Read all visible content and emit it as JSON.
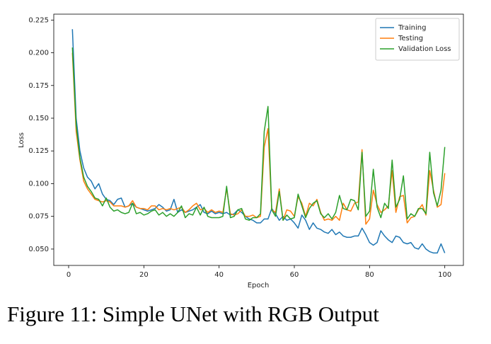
{
  "chart_data": {
    "type": "line",
    "xlabel": "Epoch",
    "ylabel": "Loss",
    "caption": "Figure 11: Simple UNet with RGB Output",
    "legend": "upper right",
    "x": [
      1,
      2,
      3,
      4,
      5,
      6,
      7,
      8,
      9,
      10,
      11,
      12,
      13,
      14,
      15,
      16,
      17,
      18,
      19,
      20,
      21,
      22,
      23,
      24,
      25,
      26,
      27,
      28,
      29,
      30,
      31,
      32,
      33,
      34,
      35,
      36,
      37,
      38,
      39,
      40,
      41,
      42,
      43,
      44,
      45,
      46,
      47,
      48,
      49,
      50,
      51,
      52,
      53,
      54,
      55,
      56,
      57,
      58,
      59,
      60,
      61,
      62,
      63,
      64,
      65,
      66,
      67,
      68,
      69,
      70,
      71,
      72,
      73,
      74,
      75,
      76,
      77,
      78,
      79,
      80,
      81,
      82,
      83,
      84,
      85,
      86,
      87,
      88,
      89,
      90,
      91,
      92,
      93,
      94,
      95,
      96,
      97,
      98,
      99,
      100
    ],
    "series": [
      {
        "name": "Training",
        "color": "#1f77b4",
        "values": [
          0.218,
          0.15,
          0.125,
          0.112,
          0.105,
          0.102,
          0.096,
          0.1,
          0.092,
          0.088,
          0.087,
          0.084,
          0.088,
          0.089,
          0.082,
          0.083,
          0.085,
          0.082,
          0.081,
          0.08,
          0.079,
          0.08,
          0.081,
          0.084,
          0.082,
          0.079,
          0.08,
          0.088,
          0.078,
          0.08,
          0.078,
          0.079,
          0.08,
          0.082,
          0.084,
          0.078,
          0.077,
          0.079,
          0.077,
          0.078,
          0.077,
          0.078,
          0.076,
          0.077,
          0.08,
          0.078,
          0.075,
          0.073,
          0.072,
          0.07,
          0.07,
          0.073,
          0.073,
          0.081,
          0.077,
          0.072,
          0.075,
          0.072,
          0.073,
          0.07,
          0.066,
          0.076,
          0.072,
          0.065,
          0.07,
          0.066,
          0.065,
          0.063,
          0.062,
          0.065,
          0.061,
          0.063,
          0.06,
          0.059,
          0.059,
          0.06,
          0.06,
          0.066,
          0.061,
          0.055,
          0.053,
          0.055,
          0.064,
          0.06,
          0.057,
          0.055,
          0.06,
          0.059,
          0.055,
          0.054,
          0.055,
          0.051,
          0.05,
          0.054,
          0.05,
          0.048,
          0.047,
          0.047,
          0.054,
          0.047
        ]
      },
      {
        "name": "Testing",
        "color": "#ff7f0e",
        "values": [
          0.2,
          0.14,
          0.118,
          0.102,
          0.096,
          0.092,
          0.088,
          0.087,
          0.086,
          0.087,
          0.086,
          0.083,
          0.083,
          0.083,
          0.082,
          0.083,
          0.087,
          0.082,
          0.081,
          0.081,
          0.08,
          0.083,
          0.083,
          0.08,
          0.081,
          0.08,
          0.081,
          0.08,
          0.081,
          0.082,
          0.078,
          0.08,
          0.083,
          0.085,
          0.08,
          0.081,
          0.078,
          0.08,
          0.078,
          0.079,
          0.078,
          0.096,
          0.077,
          0.076,
          0.077,
          0.08,
          0.075,
          0.075,
          0.076,
          0.074,
          0.075,
          0.128,
          0.142,
          0.08,
          0.078,
          0.096,
          0.072,
          0.08,
          0.079,
          0.075,
          0.09,
          0.085,
          0.075,
          0.085,
          0.083,
          0.088,
          0.078,
          0.072,
          0.073,
          0.072,
          0.075,
          0.072,
          0.085,
          0.08,
          0.079,
          0.085,
          0.086,
          0.126,
          0.069,
          0.073,
          0.095,
          0.084,
          0.078,
          0.08,
          0.083,
          0.11,
          0.078,
          0.09,
          0.091,
          0.07,
          0.074,
          0.075,
          0.08,
          0.084,
          0.076,
          0.11,
          0.095,
          0.082,
          0.084,
          0.108
        ]
      },
      {
        "name": "Validation Loss",
        "color": "#2ca02c",
        "values": [
          0.204,
          0.145,
          0.12,
          0.105,
          0.098,
          0.094,
          0.089,
          0.088,
          0.083,
          0.089,
          0.082,
          0.079,
          0.08,
          0.078,
          0.077,
          0.078,
          0.085,
          0.077,
          0.078,
          0.076,
          0.077,
          0.079,
          0.08,
          0.076,
          0.078,
          0.075,
          0.077,
          0.075,
          0.078,
          0.083,
          0.074,
          0.077,
          0.076,
          0.082,
          0.076,
          0.082,
          0.075,
          0.074,
          0.074,
          0.074,
          0.075,
          0.098,
          0.074,
          0.075,
          0.08,
          0.081,
          0.073,
          0.072,
          0.074,
          0.074,
          0.077,
          0.14,
          0.159,
          0.08,
          0.075,
          0.094,
          0.072,
          0.076,
          0.073,
          0.074,
          0.092,
          0.083,
          0.074,
          0.081,
          0.085,
          0.087,
          0.077,
          0.074,
          0.077,
          0.073,
          0.078,
          0.091,
          0.081,
          0.08,
          0.088,
          0.087,
          0.08,
          0.124,
          0.075,
          0.079,
          0.111,
          0.082,
          0.074,
          0.085,
          0.081,
          0.118,
          0.082,
          0.088,
          0.106,
          0.073,
          0.077,
          0.075,
          0.081,
          0.081,
          0.077,
          0.124,
          0.093,
          0.083,
          0.095,
          0.128
        ]
      }
    ],
    "xlim": [
      -3.95,
      104.95
    ],
    "xticks": [
      0,
      20,
      40,
      60,
      80,
      100
    ],
    "ylim": [
      0.0375,
      0.2295
    ],
    "yticks": [
      {
        "value": 0.05,
        "label": "0.050"
      },
      {
        "value": 0.075,
        "label": "0.075"
      },
      {
        "value": 0.1,
        "label": "0.100"
      },
      {
        "value": 0.125,
        "label": "0.125"
      },
      {
        "value": 0.15,
        "label": "0.150"
      },
      {
        "value": 0.175,
        "label": "0.175"
      },
      {
        "value": 0.2,
        "label": "0.200"
      },
      {
        "value": 0.225,
        "label": "0.225"
      }
    ]
  }
}
